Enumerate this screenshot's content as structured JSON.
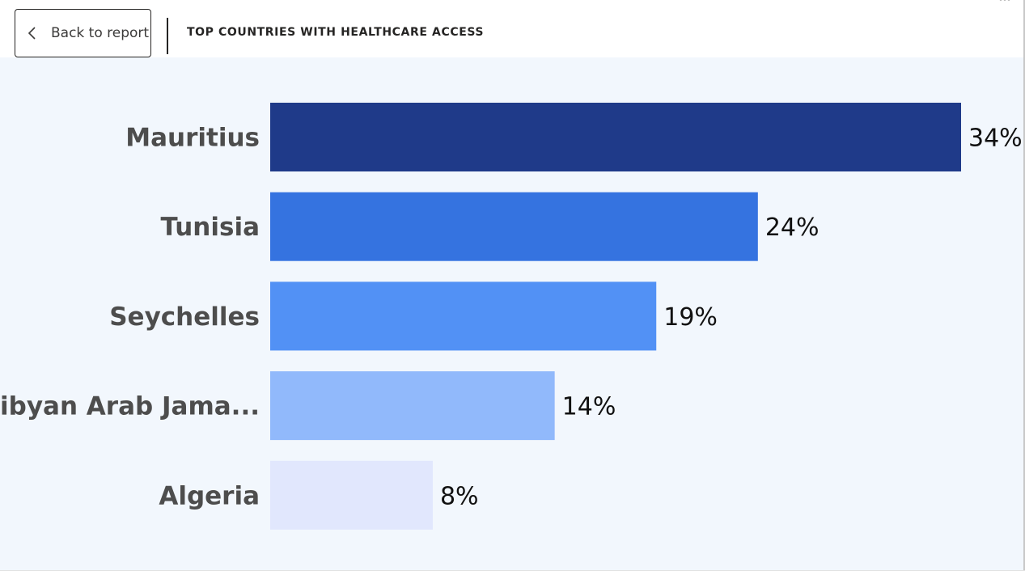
{
  "header": {
    "back_label": "Back to report",
    "title": "TOP COUNTRIES WITH HEALTHCARE ACCESS"
  },
  "icons": {
    "back": "chevron-left-icon",
    "filter": "filter-icon",
    "more": "more-options-icon"
  },
  "chart_data": {
    "type": "bar",
    "orientation": "horizontal",
    "categories": [
      "Mauritius",
      "Tunisia",
      "Seychelles",
      "Libyan Arab Jama...",
      "Algeria"
    ],
    "values": [
      34,
      24,
      19,
      14,
      8
    ],
    "value_labels": [
      "34%",
      "24%",
      "19%",
      "14%",
      "8%"
    ],
    "colors": [
      "#1f3a89",
      "#3573e0",
      "#5291f5",
      "#91b9fb",
      "#e1e7fd"
    ],
    "xlim": [
      0,
      34
    ],
    "grid": false,
    "legend": "none"
  }
}
